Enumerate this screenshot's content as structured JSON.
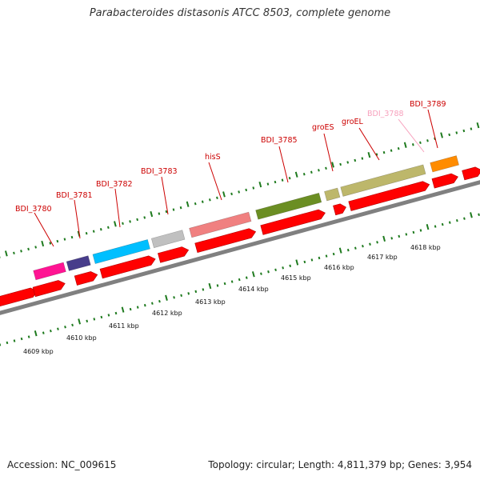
{
  "title": "Parabacteroides distasonis ATCC 8503, complete genome",
  "accession_text": "Accession: NC_009615",
  "summary_text": "Topology: circular; Length: 4,811,379 bp; Genes: 3,954",
  "gene_labels": [
    {
      "name": "BDI_3780",
      "color": "#cc0000"
    },
    {
      "name": "BDI_3781",
      "color": "#cc0000"
    },
    {
      "name": "BDI_3782",
      "color": "#cc0000"
    },
    {
      "name": "BDI_3783",
      "color": "#cc0000"
    },
    {
      "name": "hisS",
      "color": "#cc0000"
    },
    {
      "name": "BDI_3785",
      "color": "#cc0000"
    },
    {
      "name": "groES",
      "color": "#cc0000"
    },
    {
      "name": "groEL",
      "color": "#cc0000"
    },
    {
      "name": "BDI_3788",
      "color": "#f7a1bd"
    },
    {
      "name": "BDI_3789",
      "color": "#cc0000"
    }
  ],
  "scale_labels": [
    "4609 kbp",
    "4610 kbp",
    "4611 kbp",
    "4612 kbp",
    "4613 kbp",
    "4614 kbp",
    "4615 kbp",
    "4616 kbp",
    "4617 kbp",
    "4618 kbp"
  ],
  "colors": {
    "cds": "#ff0000",
    "backbone": "#808080",
    "tick": "#1e7a1e",
    "label_line": "#cc0000",
    "faded_label_line": "#f7a1bd",
    "features": [
      "#ff1493",
      "#483d8b",
      "#00bfff",
      "#c0c0c0",
      "#f08080",
      "#6b8e23",
      "#bdb76b",
      "#bdb76b",
      "#ff8c00"
    ]
  }
}
